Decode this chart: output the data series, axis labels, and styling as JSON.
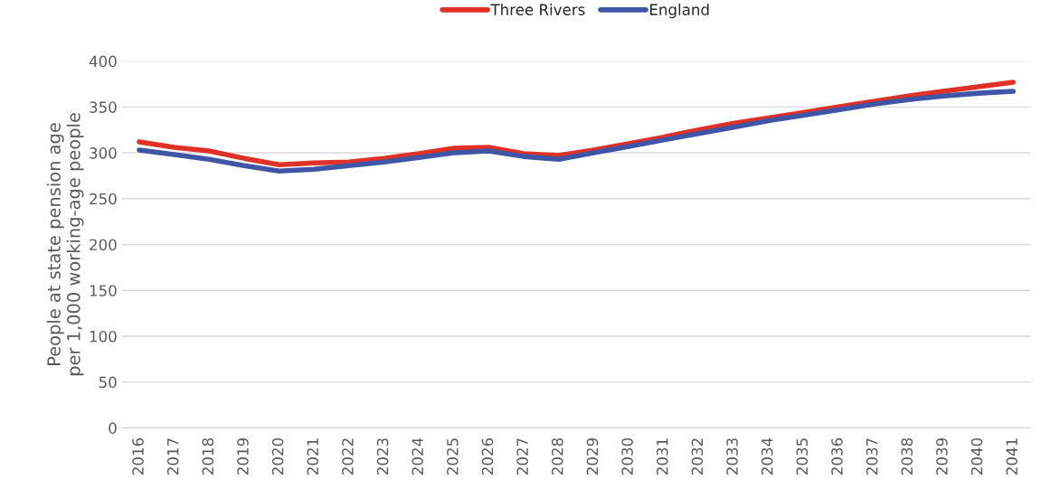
{
  "chart_data": {
    "type": "line",
    "ylabel": "People at state pension age\nper 1,000 working-age people",
    "categories": [
      "2016",
      "2017",
      "2018",
      "2019",
      "2020",
      "2021",
      "2022",
      "2023",
      "2024",
      "2025",
      "2026",
      "2027",
      "2028",
      "2029",
      "2030",
      "2031",
      "2032",
      "2033",
      "2034",
      "2035",
      "2036",
      "2037",
      "2038",
      "2039",
      "2040",
      "2041"
    ],
    "series": [
      {
        "name": "Three Rivers",
        "color": "#e03127",
        "values": [
          312,
          306,
          302,
          294,
          287,
          289,
          290,
          294,
          299,
          305,
          306,
          299,
          297,
          303,
          310,
          317,
          325,
          332,
          338,
          344,
          350,
          356,
          362,
          367,
          372,
          377
        ]
      },
      {
        "name": "England",
        "color": "#3f55a5",
        "values": [
          303,
          298,
          293,
          286,
          280,
          282,
          286,
          290,
          295,
          300,
          302,
          296,
          293,
          300,
          307,
          314,
          321,
          328,
          335,
          341,
          347,
          353,
          358,
          362,
          365,
          367
        ]
      }
    ],
    "ylim": [
      0,
      400
    ],
    "yticks": [
      0,
      50,
      100,
      150,
      200,
      250,
      300,
      350,
      400
    ],
    "grid": "y",
    "legend": "top",
    "marker": "none",
    "line_style": "solid"
  }
}
